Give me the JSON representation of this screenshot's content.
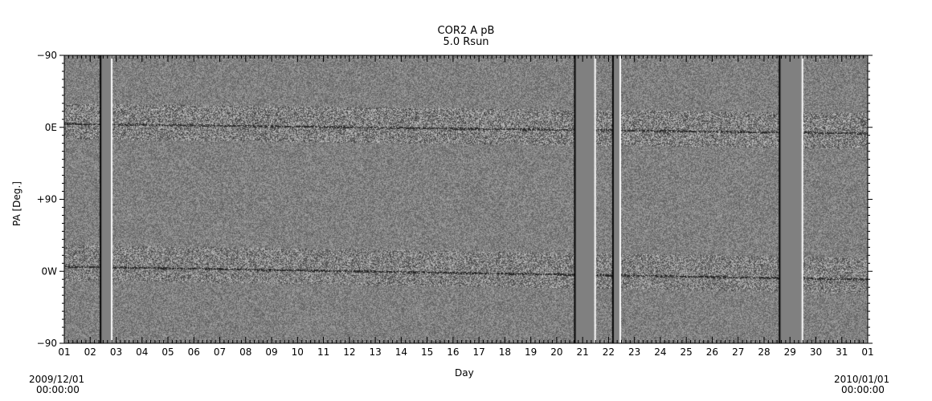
{
  "chart_data": {
    "type": "heatmap",
    "title": "COR2 A pB",
    "subtitle": "5.0 Rsun",
    "xlabel": "Day",
    "ylabel": "PA [Deg.]",
    "x_tick_labels": [
      "01",
      "02",
      "03",
      "04",
      "05",
      "06",
      "07",
      "08",
      "09",
      "10",
      "11",
      "12",
      "13",
      "14",
      "15",
      "16",
      "17",
      "18",
      "19",
      "20",
      "21",
      "22",
      "23",
      "24",
      "25",
      "26",
      "27",
      "28",
      "29",
      "30",
      "31",
      "01"
    ],
    "y_tick_labels": [
      "-90",
      "0E",
      "+90",
      "0W",
      "-90"
    ],
    "xlim_days": [
      0,
      31
    ],
    "start_date": "2009/12/01",
    "start_time": "00:00:00",
    "end_date": "2010/01/01",
    "end_time": "00:00:00",
    "colormap": "grayscale",
    "data_gaps_days": [
      [
        1.4,
        1.8
      ],
      [
        19.7,
        20.45
      ],
      [
        21.17,
        21.42
      ],
      [
        27.6,
        28.45
      ]
    ],
    "colors": {
      "gap": "#808080",
      "background": "#ffffff"
    }
  }
}
